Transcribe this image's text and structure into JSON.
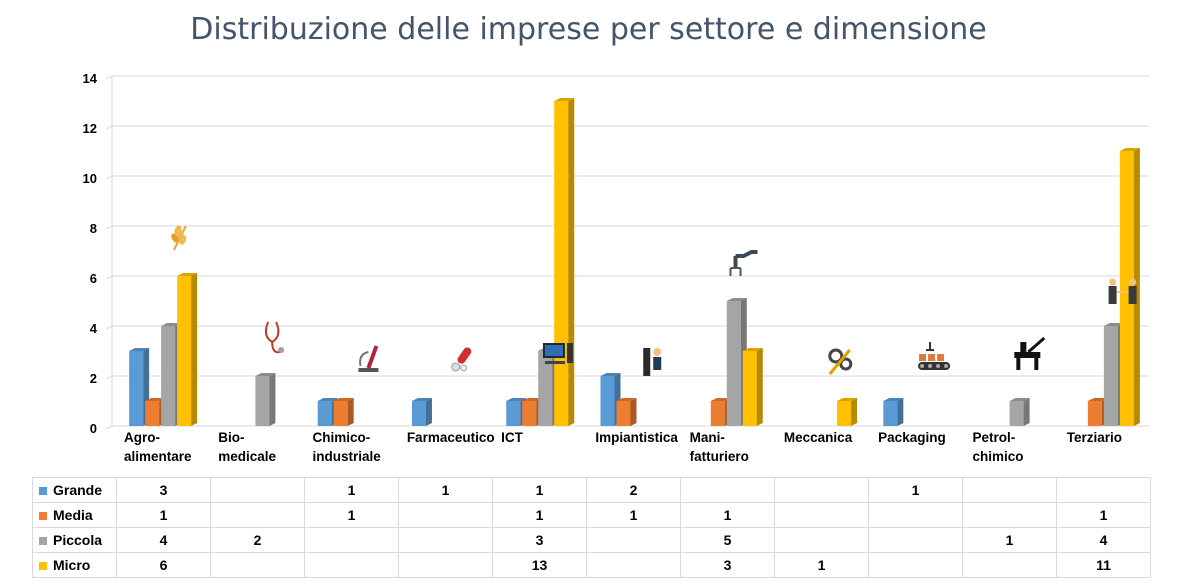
{
  "chart_data": {
    "type": "bar",
    "title": "Distribuzione delle imprese per settore e dimensione",
    "xlabel": "",
    "ylabel": "",
    "ylim": [
      0,
      14
    ],
    "yticks": [
      "0",
      "2",
      "4",
      "6",
      "8",
      "10",
      "12",
      "14"
    ],
    "grid": true,
    "legend": "table-bottom",
    "categories": [
      [
        "Agro-",
        "alimentare"
      ],
      [
        "Bio-",
        "medicale"
      ],
      [
        "Chimico-",
        "industriale"
      ],
      [
        "Farmaceutico"
      ],
      [
        "ICT"
      ],
      [
        "Impiantistica"
      ],
      [
        "Mani-",
        "fatturiero"
      ],
      [
        "Meccanica"
      ],
      [
        "Packaging"
      ],
      [
        "Petrol-",
        "chimico"
      ],
      [
        "Terziario"
      ]
    ],
    "category_icons": [
      "wheat-icon",
      "stethoscope-icon",
      "microscope-icon",
      "pill-icon",
      "computer-icon",
      "technician-icon",
      "robot-arm-icon",
      "gears-icon",
      "conveyor-icon",
      "oil-rig-icon",
      "handshake-icon"
    ],
    "series": [
      {
        "name": "Grande",
        "color": "#5b9bd5",
        "values": [
          3,
          null,
          1,
          1,
          1,
          2,
          null,
          null,
          1,
          null,
          null
        ]
      },
      {
        "name": "Media",
        "color": "#ed7d31",
        "values": [
          1,
          null,
          1,
          null,
          1,
          1,
          1,
          null,
          null,
          null,
          1
        ]
      },
      {
        "name": "Piccola",
        "color": "#a5a5a5",
        "values": [
          4,
          2,
          null,
          null,
          3,
          null,
          5,
          null,
          null,
          1,
          4
        ]
      },
      {
        "name": "Micro",
        "color": "#ffc000",
        "values": [
          6,
          null,
          null,
          null,
          13,
          null,
          3,
          1,
          null,
          null,
          11
        ]
      }
    ]
  }
}
